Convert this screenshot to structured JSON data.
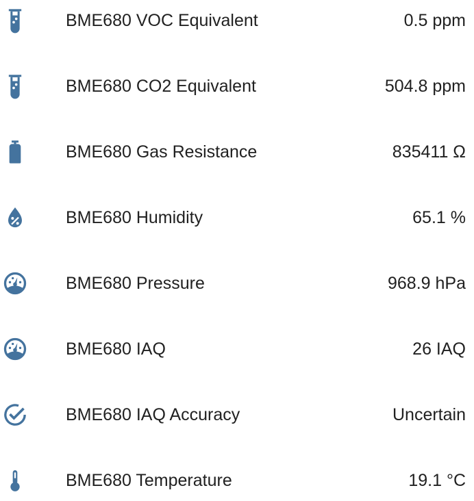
{
  "icon_color": "#44739e",
  "entities": [
    {
      "icon": "test-tube-icon",
      "name": "BME680 VOC Equivalent",
      "value": "0.5 ppm"
    },
    {
      "icon": "test-tube-icon",
      "name": "BME680 CO2 Equivalent",
      "value": "504.8 ppm"
    },
    {
      "icon": "gas-cylinder-icon",
      "name": "BME680 Gas Resistance",
      "value": "835411 Ω"
    },
    {
      "icon": "water-percent-icon",
      "name": "BME680 Humidity",
      "value": "65.1 %"
    },
    {
      "icon": "gauge-icon",
      "name": "BME680 Pressure",
      "value": "968.9 hPa"
    },
    {
      "icon": "gauge-icon",
      "name": "BME680 IAQ",
      "value": "26 IAQ"
    },
    {
      "icon": "check-circle-outline-icon",
      "name": "BME680 IAQ Accuracy",
      "value": "Uncertain"
    },
    {
      "icon": "thermometer-icon",
      "name": "BME680 Temperature",
      "value": "19.1 °C"
    }
  ]
}
